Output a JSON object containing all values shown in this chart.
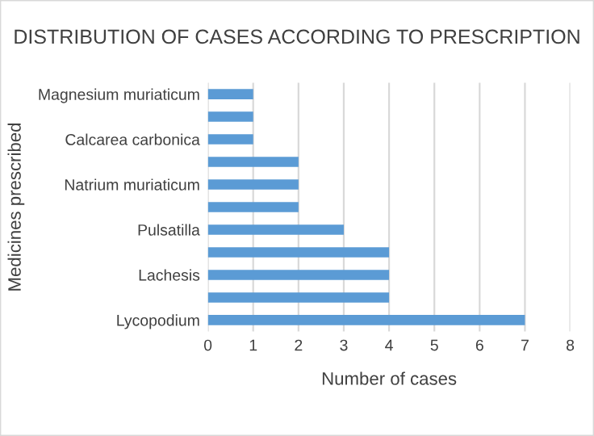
{
  "chart_data": {
    "type": "bar",
    "orientation": "horizontal",
    "title": "DISTRIBUTION OF CASES ACCORDING TO PRESCRIPTION",
    "xlabel": "Number of cases",
    "ylabel": "Medicines prescribed",
    "categories": [
      "Magnesium muriaticum",
      null,
      "Calcarea carbonica",
      null,
      "Natrium muriaticum",
      null,
      "Pulsatilla",
      null,
      "Lachesis",
      null,
      "Lycopodium"
    ],
    "values": [
      1,
      1,
      1,
      2,
      2,
      2,
      3,
      4,
      4,
      4,
      7
    ],
    "color": "#5b9bd5",
    "xlim": [
      0,
      8
    ],
    "xticks": [
      0,
      1,
      2,
      3,
      4,
      5,
      6,
      7,
      8
    ],
    "grid": "x"
  }
}
